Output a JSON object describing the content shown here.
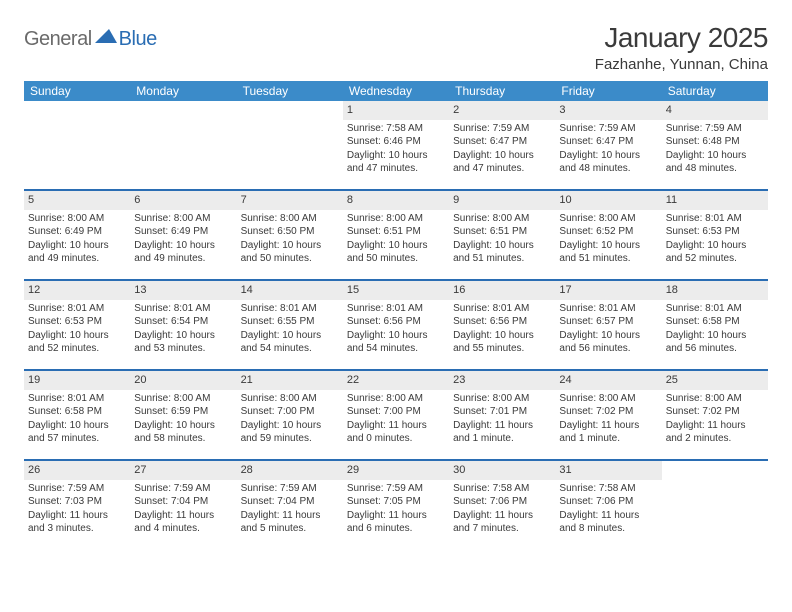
{
  "logo": {
    "text1": "General",
    "text2": "Blue",
    "triangle_color": "#2a6db3"
  },
  "title": "January 2025",
  "location": "Fazhanhe, Yunnan, China",
  "colors": {
    "header_bg": "#3b8bc9",
    "header_text": "#ffffff",
    "week_divider": "#2a6db3",
    "daynum_bg": "#ececec",
    "body_text": "#3a3a3a",
    "page_bg": "#ffffff"
  },
  "weekdays": [
    "Sunday",
    "Monday",
    "Tuesday",
    "Wednesday",
    "Thursday",
    "Friday",
    "Saturday"
  ],
  "weeks": [
    [
      null,
      null,
      null,
      {
        "n": "1",
        "sunrise": "7:58 AM",
        "sunset": "6:46 PM",
        "daylight": "10 hours and 47 minutes."
      },
      {
        "n": "2",
        "sunrise": "7:59 AM",
        "sunset": "6:47 PM",
        "daylight": "10 hours and 47 minutes."
      },
      {
        "n": "3",
        "sunrise": "7:59 AM",
        "sunset": "6:47 PM",
        "daylight": "10 hours and 48 minutes."
      },
      {
        "n": "4",
        "sunrise": "7:59 AM",
        "sunset": "6:48 PM",
        "daylight": "10 hours and 48 minutes."
      }
    ],
    [
      {
        "n": "5",
        "sunrise": "8:00 AM",
        "sunset": "6:49 PM",
        "daylight": "10 hours and 49 minutes."
      },
      {
        "n": "6",
        "sunrise": "8:00 AM",
        "sunset": "6:49 PM",
        "daylight": "10 hours and 49 minutes."
      },
      {
        "n": "7",
        "sunrise": "8:00 AM",
        "sunset": "6:50 PM",
        "daylight": "10 hours and 50 minutes."
      },
      {
        "n": "8",
        "sunrise": "8:00 AM",
        "sunset": "6:51 PM",
        "daylight": "10 hours and 50 minutes."
      },
      {
        "n": "9",
        "sunrise": "8:00 AM",
        "sunset": "6:51 PM",
        "daylight": "10 hours and 51 minutes."
      },
      {
        "n": "10",
        "sunrise": "8:00 AM",
        "sunset": "6:52 PM",
        "daylight": "10 hours and 51 minutes."
      },
      {
        "n": "11",
        "sunrise": "8:01 AM",
        "sunset": "6:53 PM",
        "daylight": "10 hours and 52 minutes."
      }
    ],
    [
      {
        "n": "12",
        "sunrise": "8:01 AM",
        "sunset": "6:53 PM",
        "daylight": "10 hours and 52 minutes."
      },
      {
        "n": "13",
        "sunrise": "8:01 AM",
        "sunset": "6:54 PM",
        "daylight": "10 hours and 53 minutes."
      },
      {
        "n": "14",
        "sunrise": "8:01 AM",
        "sunset": "6:55 PM",
        "daylight": "10 hours and 54 minutes."
      },
      {
        "n": "15",
        "sunrise": "8:01 AM",
        "sunset": "6:56 PM",
        "daylight": "10 hours and 54 minutes."
      },
      {
        "n": "16",
        "sunrise": "8:01 AM",
        "sunset": "6:56 PM",
        "daylight": "10 hours and 55 minutes."
      },
      {
        "n": "17",
        "sunrise": "8:01 AM",
        "sunset": "6:57 PM",
        "daylight": "10 hours and 56 minutes."
      },
      {
        "n": "18",
        "sunrise": "8:01 AM",
        "sunset": "6:58 PM",
        "daylight": "10 hours and 56 minutes."
      }
    ],
    [
      {
        "n": "19",
        "sunrise": "8:01 AM",
        "sunset": "6:58 PM",
        "daylight": "10 hours and 57 minutes."
      },
      {
        "n": "20",
        "sunrise": "8:00 AM",
        "sunset": "6:59 PM",
        "daylight": "10 hours and 58 minutes."
      },
      {
        "n": "21",
        "sunrise": "8:00 AM",
        "sunset": "7:00 PM",
        "daylight": "10 hours and 59 minutes."
      },
      {
        "n": "22",
        "sunrise": "8:00 AM",
        "sunset": "7:00 PM",
        "daylight": "11 hours and 0 minutes."
      },
      {
        "n": "23",
        "sunrise": "8:00 AM",
        "sunset": "7:01 PM",
        "daylight": "11 hours and 1 minute."
      },
      {
        "n": "24",
        "sunrise": "8:00 AM",
        "sunset": "7:02 PM",
        "daylight": "11 hours and 1 minute."
      },
      {
        "n": "25",
        "sunrise": "8:00 AM",
        "sunset": "7:02 PM",
        "daylight": "11 hours and 2 minutes."
      }
    ],
    [
      {
        "n": "26",
        "sunrise": "7:59 AM",
        "sunset": "7:03 PM",
        "daylight": "11 hours and 3 minutes."
      },
      {
        "n": "27",
        "sunrise": "7:59 AM",
        "sunset": "7:04 PM",
        "daylight": "11 hours and 4 minutes."
      },
      {
        "n": "28",
        "sunrise": "7:59 AM",
        "sunset": "7:04 PM",
        "daylight": "11 hours and 5 minutes."
      },
      {
        "n": "29",
        "sunrise": "7:59 AM",
        "sunset": "7:05 PM",
        "daylight": "11 hours and 6 minutes."
      },
      {
        "n": "30",
        "sunrise": "7:58 AM",
        "sunset": "7:06 PM",
        "daylight": "11 hours and 7 minutes."
      },
      {
        "n": "31",
        "sunrise": "7:58 AM",
        "sunset": "7:06 PM",
        "daylight": "11 hours and 8 minutes."
      },
      null
    ]
  ],
  "labels": {
    "sunrise": "Sunrise:",
    "sunset": "Sunset:",
    "daylight": "Daylight:"
  }
}
